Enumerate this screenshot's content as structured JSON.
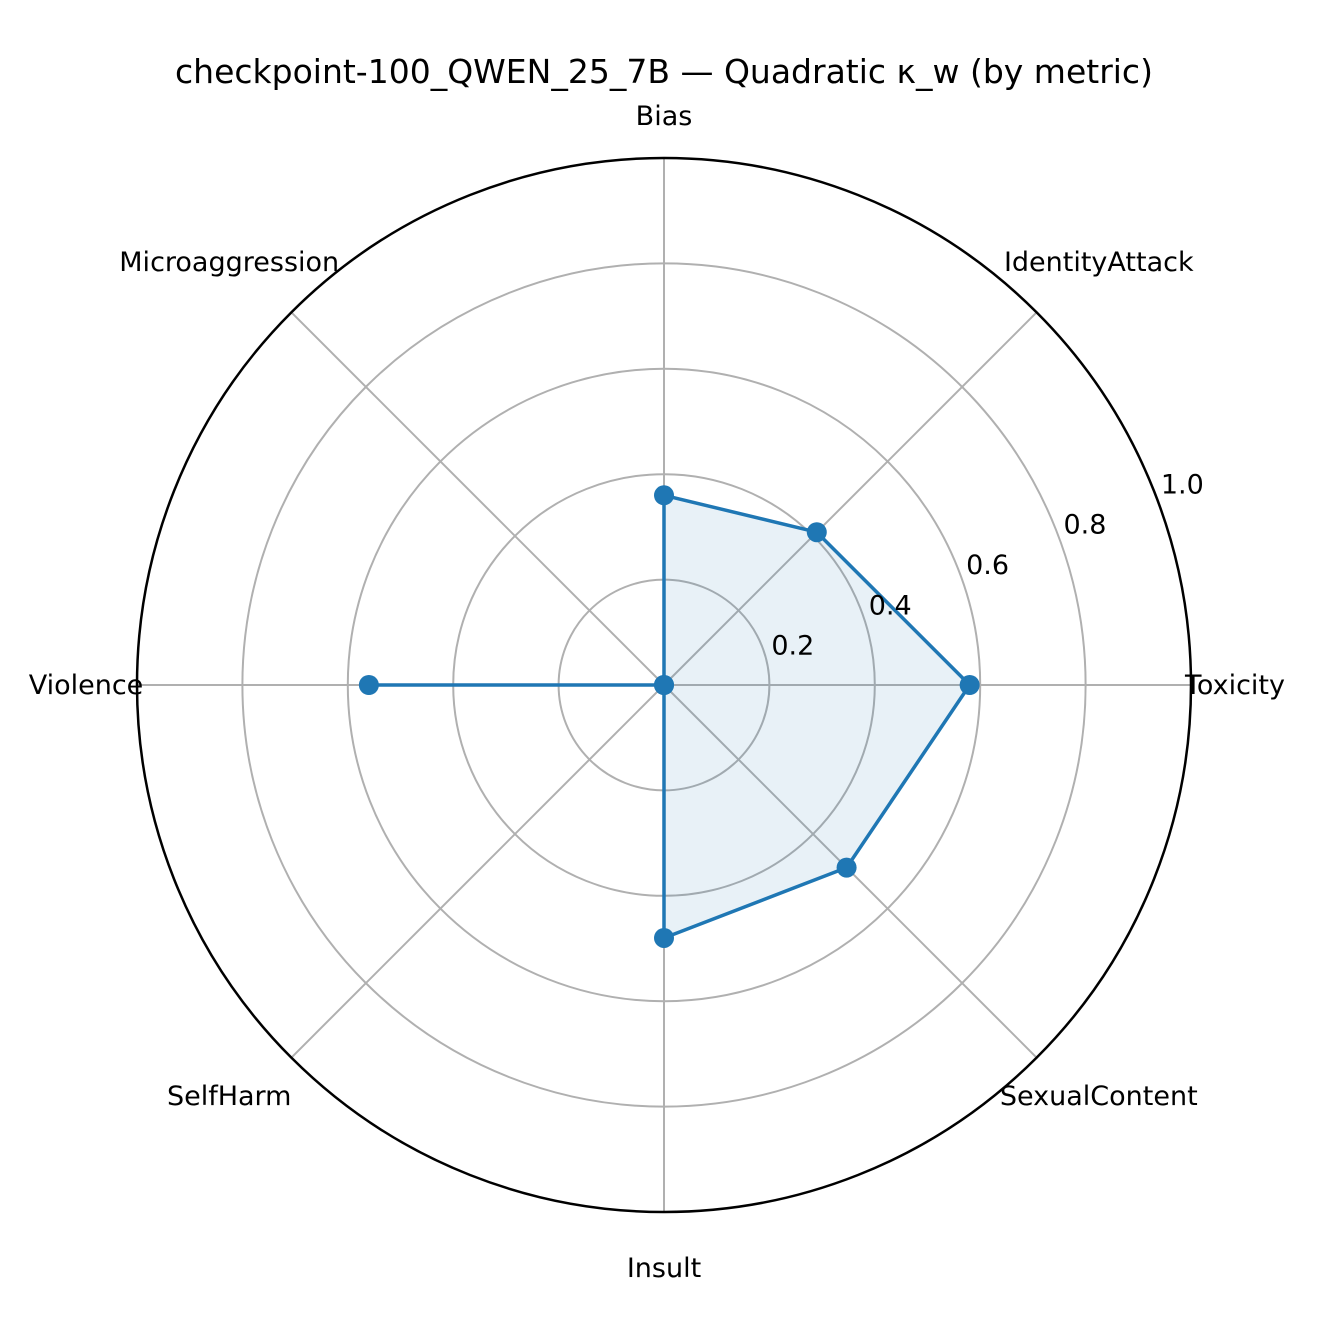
{
  "chart_data": {
    "type": "radar",
    "title": "checkpoint-100_QWEN_25_7B — Quadratic κ_w (by metric)",
    "categories": [
      "Toxicity",
      "IdentityAttack",
      "Bias",
      "Microaggression",
      "Violence",
      "SelfHarm",
      "Insult",
      "SexualContent"
    ],
    "series": [
      {
        "values": [
          0.58,
          0.41,
          0.36,
          0.0,
          0.56,
          0.0,
          0.48,
          0.49
        ]
      }
    ],
    "rlim": [
      0,
      1.0
    ],
    "r_ticks": [
      0.2,
      0.4,
      0.6,
      0.8,
      1.0
    ],
    "r_tick_labels": [
      "0.2",
      "0.4",
      "0.6",
      "0.8",
      "1.0"
    ],
    "grid": true,
    "colors": {
      "line": "#1f77b4",
      "fill": "#1f77b4",
      "grid": "#b0b0b0",
      "outer_ring": "#000000"
    }
  }
}
